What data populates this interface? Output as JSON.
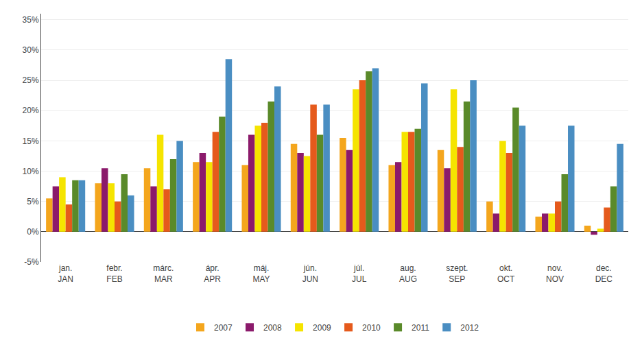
{
  "chart_data": {
    "type": "bar",
    "categories": [
      "jan.\nJAN",
      "febr.\nFEB",
      "márc.\nMAR",
      "ápr.\nAPR",
      "máj.\nMAY",
      "jún.\nJUN",
      "júl.\nJUL",
      "aug.\nAUG",
      "szept.\nSEP",
      "okt.\nOCT",
      "nov.\nNOV",
      "dec.\nDEC"
    ],
    "series": [
      {
        "name": "2007",
        "color": "#F4A61D",
        "values": [
          5.5,
          8.0,
          10.5,
          11.5,
          11.0,
          14.5,
          15.5,
          11.0,
          13.5,
          5.0,
          2.5,
          1.0
        ]
      },
      {
        "name": "2008",
        "color": "#8B1A6B",
        "values": [
          7.5,
          10.5,
          7.5,
          13.0,
          16.0,
          13.0,
          13.5,
          11.5,
          10.5,
          3.0,
          3.0,
          -0.5
        ]
      },
      {
        "name": "2009",
        "color": "#F5E400",
        "values": [
          9.0,
          8.0,
          16.0,
          11.5,
          17.5,
          12.5,
          23.5,
          16.5,
          23.5,
          15.0,
          3.0,
          0.5
        ]
      },
      {
        "name": "2010",
        "color": "#E55A1C",
        "values": [
          4.5,
          5.0,
          7.0,
          16.5,
          18.0,
          21.0,
          25.0,
          16.5,
          14.0,
          13.0,
          5.0,
          4.0
        ]
      },
      {
        "name": "2011",
        "color": "#5A8A2A",
        "values": [
          8.5,
          9.5,
          12.0,
          19.0,
          21.5,
          16.0,
          26.5,
          17.0,
          21.5,
          20.5,
          9.5,
          7.5
        ]
      },
      {
        "name": "2012",
        "color": "#4A8EC2",
        "values": [
          8.5,
          6.0,
          15.0,
          28.5,
          24.0,
          21.0,
          27.0,
          24.5,
          25.0,
          17.5,
          17.5,
          14.5
        ]
      }
    ],
    "ylim": [
      -5,
      36
    ],
    "yticks": [
      {
        "value": -5,
        "label": "-5%"
      },
      {
        "value": 0,
        "label": "0%"
      },
      {
        "value": 5,
        "label": "5%"
      },
      {
        "value": 10,
        "label": "10%"
      },
      {
        "value": 15,
        "label": "15%"
      },
      {
        "value": 20,
        "label": "20%"
      },
      {
        "value": 25,
        "label": "25%"
      },
      {
        "value": 30,
        "label": "30%"
      },
      {
        "value": 35,
        "label": "35%"
      }
    ],
    "grid": true,
    "legend": "bottom"
  }
}
